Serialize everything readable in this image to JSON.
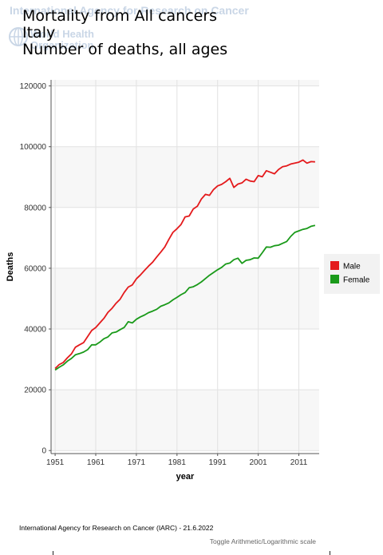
{
  "watermark": {
    "agency": "International Agency for Research on Cancer",
    "who_line1": "World Health",
    "who_line2": "Organization"
  },
  "title": {
    "line1": "Mortality from All cancers",
    "line2": "Italy",
    "line3": "Number of deaths, all ages"
  },
  "chart_data": {
    "type": "line",
    "xlabel": "year",
    "ylabel": "Deaths",
    "xlim": [
      1950,
      2016
    ],
    "ylim": [
      -1000,
      122000
    ],
    "x_ticks": [
      1951,
      1961,
      1971,
      1981,
      1991,
      2001,
      2011
    ],
    "y_ticks": [
      0,
      20000,
      40000,
      60000,
      80000,
      100000,
      120000
    ],
    "grid": true,
    "legend_position": "right",
    "x": [
      1951,
      1952,
      1953,
      1954,
      1955,
      1956,
      1957,
      1958,
      1959,
      1960,
      1961,
      1962,
      1963,
      1964,
      1965,
      1966,
      1967,
      1968,
      1969,
      1970,
      1971,
      1972,
      1973,
      1974,
      1975,
      1976,
      1977,
      1978,
      1979,
      1980,
      1981,
      1982,
      1983,
      1984,
      1985,
      1986,
      1987,
      1988,
      1989,
      1990,
      1991,
      1992,
      1993,
      1994,
      1995,
      1996,
      1997,
      1998,
      1999,
      2000,
      2001,
      2002,
      2003,
      2004,
      2005,
      2006,
      2007,
      2008,
      2009,
      2010,
      2011,
      2012,
      2013,
      2014,
      2015
    ],
    "series": [
      {
        "name": "Male",
        "color": "#e41a1c",
        "values": [
          27000,
          28300,
          29000,
          30500,
          31800,
          34000,
          34800,
          35500,
          37500,
          39500,
          40500,
          42000,
          43500,
          45500,
          46800,
          48500,
          49800,
          52000,
          53800,
          54500,
          56500,
          57800,
          59300,
          60700,
          62000,
          63700,
          65300,
          67000,
          69500,
          71800,
          73000,
          74400,
          76900,
          77200,
          79500,
          80400,
          82800,
          84300,
          84000,
          85900,
          87100,
          87600,
          88500,
          89600,
          86600,
          87700,
          88100,
          89300,
          88700,
          88500,
          90500,
          90100,
          92100,
          91600,
          91100,
          92500,
          93400,
          93700,
          94300,
          94600,
          94900,
          95600,
          94600,
          95100,
          95000
        ]
      },
      {
        "name": "Female",
        "color": "#1a9a1a",
        "values": [
          26500,
          27400,
          28200,
          29400,
          30300,
          31500,
          31900,
          32400,
          33200,
          34800,
          34800,
          35700,
          36800,
          37400,
          38700,
          39000,
          39800,
          40500,
          42400,
          42000,
          43200,
          44000,
          44600,
          45400,
          45900,
          46500,
          47500,
          48000,
          48600,
          49600,
          50400,
          51300,
          52000,
          53600,
          53900,
          54600,
          55500,
          56600,
          57700,
          58600,
          59500,
          60300,
          61400,
          61700,
          62800,
          63300,
          61600,
          62600,
          62800,
          63400,
          63300,
          65100,
          67000,
          66900,
          67400,
          67600,
          68200,
          68800,
          70500,
          71800,
          72300,
          72800,
          73100,
          73800,
          74100
        ]
      }
    ]
  },
  "footer": {
    "credit": "International Agency for Research on Cancer (IARC) - 21.6.2022",
    "toggle": "Toggle Arithmetic/Logarithmic scale"
  }
}
